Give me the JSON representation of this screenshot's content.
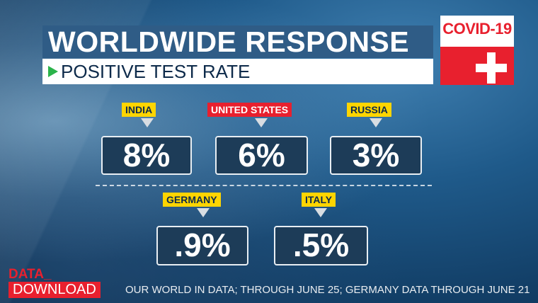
{
  "header": {
    "title": "WORLDWIDE RESPONSE",
    "subtitle": "POSITIVE TEST RATE",
    "badge": "COVID-19"
  },
  "countries": [
    {
      "name": "INDIA",
      "value": "8%",
      "label_color": "yellow"
    },
    {
      "name": "UNITED STATES",
      "value": "6%",
      "label_color": "red"
    },
    {
      "name": "RUSSIA",
      "value": "3%",
      "label_color": "yellow"
    },
    {
      "name": "GERMANY",
      "value": ".9%",
      "label_color": "yellow"
    },
    {
      "name": "ITALY",
      "value": ".5%",
      "label_color": "yellow"
    }
  ],
  "footer": {
    "brand_top": "DATA_",
    "brand_bottom": "DOWNLOAD",
    "source": "OUR WORLD IN DATA; THROUGH JUNE 25; GERMANY DATA THROUGH JUNE 21"
  },
  "colors": {
    "accent_red": "#e8202e",
    "label_yellow": "#ffd500",
    "box_fill": "#1d3c58",
    "title_blue": "#2f5c86",
    "arrow_green": "#2bb34a"
  }
}
